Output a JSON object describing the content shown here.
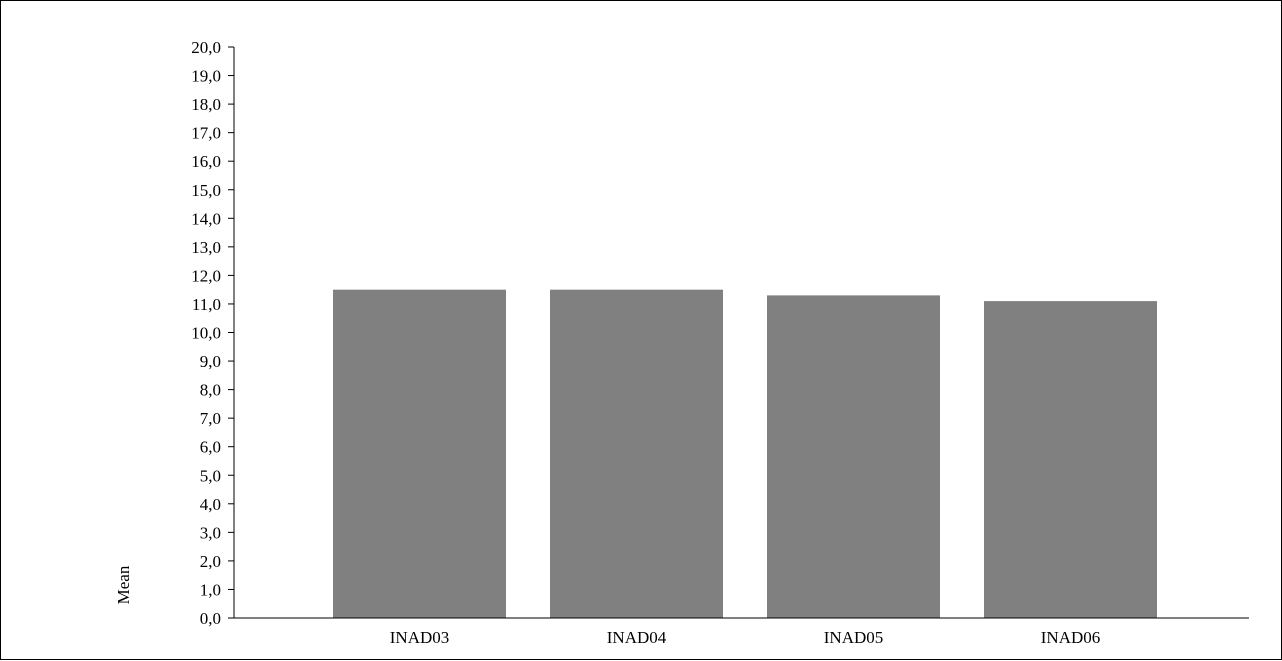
{
  "chart_data": {
    "type": "bar",
    "categories": [
      "INAD03",
      "INAD04",
      "INAD05",
      "INAD06"
    ],
    "values": [
      11.5,
      11.5,
      11.3,
      11.1
    ],
    "ylabel": "Mean",
    "xlabel": "",
    "ylim": [
      0,
      20
    ],
    "ytick_step": 1,
    "ytick_labels": [
      "0,0",
      "1,0",
      "2,0",
      "3,0",
      "4,0",
      "5,0",
      "6,0",
      "7,0",
      "8,0",
      "9,0",
      "10,0",
      "11,0",
      "12,0",
      "13,0",
      "14,0",
      "15,0",
      "16,0",
      "17,0",
      "18,0",
      "19,0",
      "20,0"
    ],
    "grid": false,
    "legend": "none",
    "bar_color": "#808080",
    "axis_color": "#000000"
  }
}
